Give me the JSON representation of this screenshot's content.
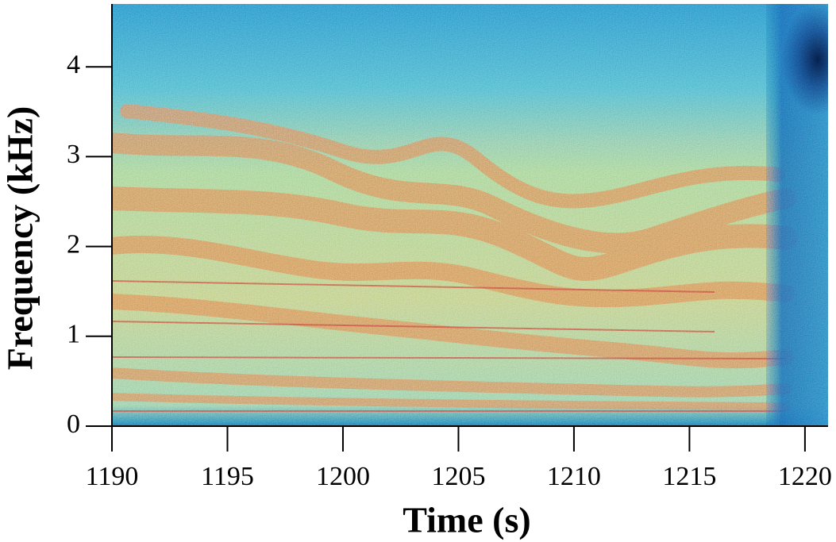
{
  "chart_data": {
    "type": "spectrogram",
    "x_label": "Time (s)",
    "y_label": "Frequency (kHz)",
    "xlim": [
      1190,
      1221
    ],
    "ylim": [
      0,
      4.7
    ],
    "xticks": [
      1190,
      1195,
      1200,
      1205,
      1210,
      1215,
      1220
    ],
    "yticks": [
      0,
      1,
      2,
      3,
      4
    ]
  }
}
